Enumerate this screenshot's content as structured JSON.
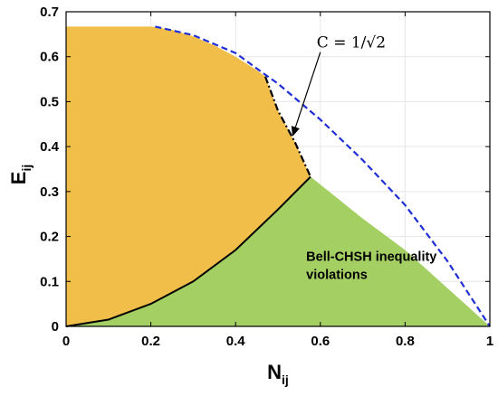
{
  "chart_data": {
    "type": "area",
    "xlabel": "N",
    "xlabel_sub": "ij",
    "ylabel": "E",
    "ylabel_sub": "ij",
    "xlim": [
      0,
      1
    ],
    "ylim": [
      0,
      0.7
    ],
    "x_ticks": [
      "0",
      "0.2",
      "0.4",
      "0.6",
      "0.8",
      "1"
    ],
    "y_ticks": [
      "0",
      "0.1",
      "0.2",
      "0.3",
      "0.4",
      "0.5",
      "0.6",
      "0.7"
    ],
    "grid": true,
    "regions": [
      {
        "id": "green-region",
        "color": "#a4cf62",
        "points": [
          [
            0,
            0
          ],
          [
            0.1,
            0.015
          ],
          [
            0.2,
            0.05
          ],
          [
            0.3,
            0.1
          ],
          [
            0.4,
            0.17
          ],
          [
            0.5,
            0.26
          ],
          [
            0.577,
            0.333
          ],
          [
            0.7,
            0.24
          ],
          [
            0.8,
            0.17
          ],
          [
            0.9,
            0.085
          ],
          [
            1.0,
            0.0
          ]
        ],
        "text": [
          "Bell-CHSH inequality",
          "violations"
        ],
        "text_pos": [
          0.62,
          0.13
        ]
      },
      {
        "id": "orange-region",
        "color": "#f2be4a",
        "points": [
          [
            0,
            0.667
          ],
          [
            0.2,
            0.667
          ],
          [
            0.25,
            0.66
          ],
          [
            0.3,
            0.645
          ],
          [
            0.35,
            0.625
          ],
          [
            0.4,
            0.6
          ],
          [
            0.45,
            0.57
          ],
          [
            0.47,
            0.556
          ],
          [
            0.5,
            0.48
          ],
          [
            0.54,
            0.41
          ],
          [
            0.577,
            0.333
          ],
          [
            0.5,
            0.26
          ],
          [
            0.4,
            0.17
          ],
          [
            0.3,
            0.1
          ],
          [
            0.2,
            0.05
          ],
          [
            0.1,
            0.015
          ],
          [
            0,
            0
          ]
        ]
      }
    ],
    "lines": [
      {
        "id": "upper-boundary",
        "style": "dashed",
        "color": "#1f2fd6",
        "points": [
          [
            0.21,
            0.667
          ],
          [
            0.3,
            0.648
          ],
          [
            0.4,
            0.608
          ],
          [
            0.47,
            0.56
          ],
          [
            0.5,
            0.54
          ],
          [
            0.6,
            0.46
          ],
          [
            0.7,
            0.37
          ],
          [
            0.8,
            0.27
          ],
          [
            0.9,
            0.145
          ],
          [
            1.0,
            0.0
          ]
        ]
      },
      {
        "id": "lower-boundary",
        "style": "solid",
        "color": "#000000",
        "points": [
          [
            0,
            0
          ],
          [
            0.1,
            0.015
          ],
          [
            0.2,
            0.05
          ],
          [
            0.3,
            0.1
          ],
          [
            0.4,
            0.17
          ],
          [
            0.5,
            0.26
          ],
          [
            0.577,
            0.333
          ]
        ]
      },
      {
        "id": "concurrence-line",
        "style": "dashdot",
        "color": "#000000",
        "points": [
          [
            0.47,
            0.556
          ],
          [
            0.5,
            0.48
          ],
          [
            0.54,
            0.41
          ],
          [
            0.577,
            0.333
          ]
        ]
      }
    ],
    "annotations": [
      {
        "id": "concurrence-label",
        "text": "C = 1/√2",
        "text_pos": [
          0.6,
          0.625
        ],
        "arrow_from": [
          0.6,
          0.61
        ],
        "arrow_to": [
          0.535,
          0.425
        ]
      }
    ]
  }
}
